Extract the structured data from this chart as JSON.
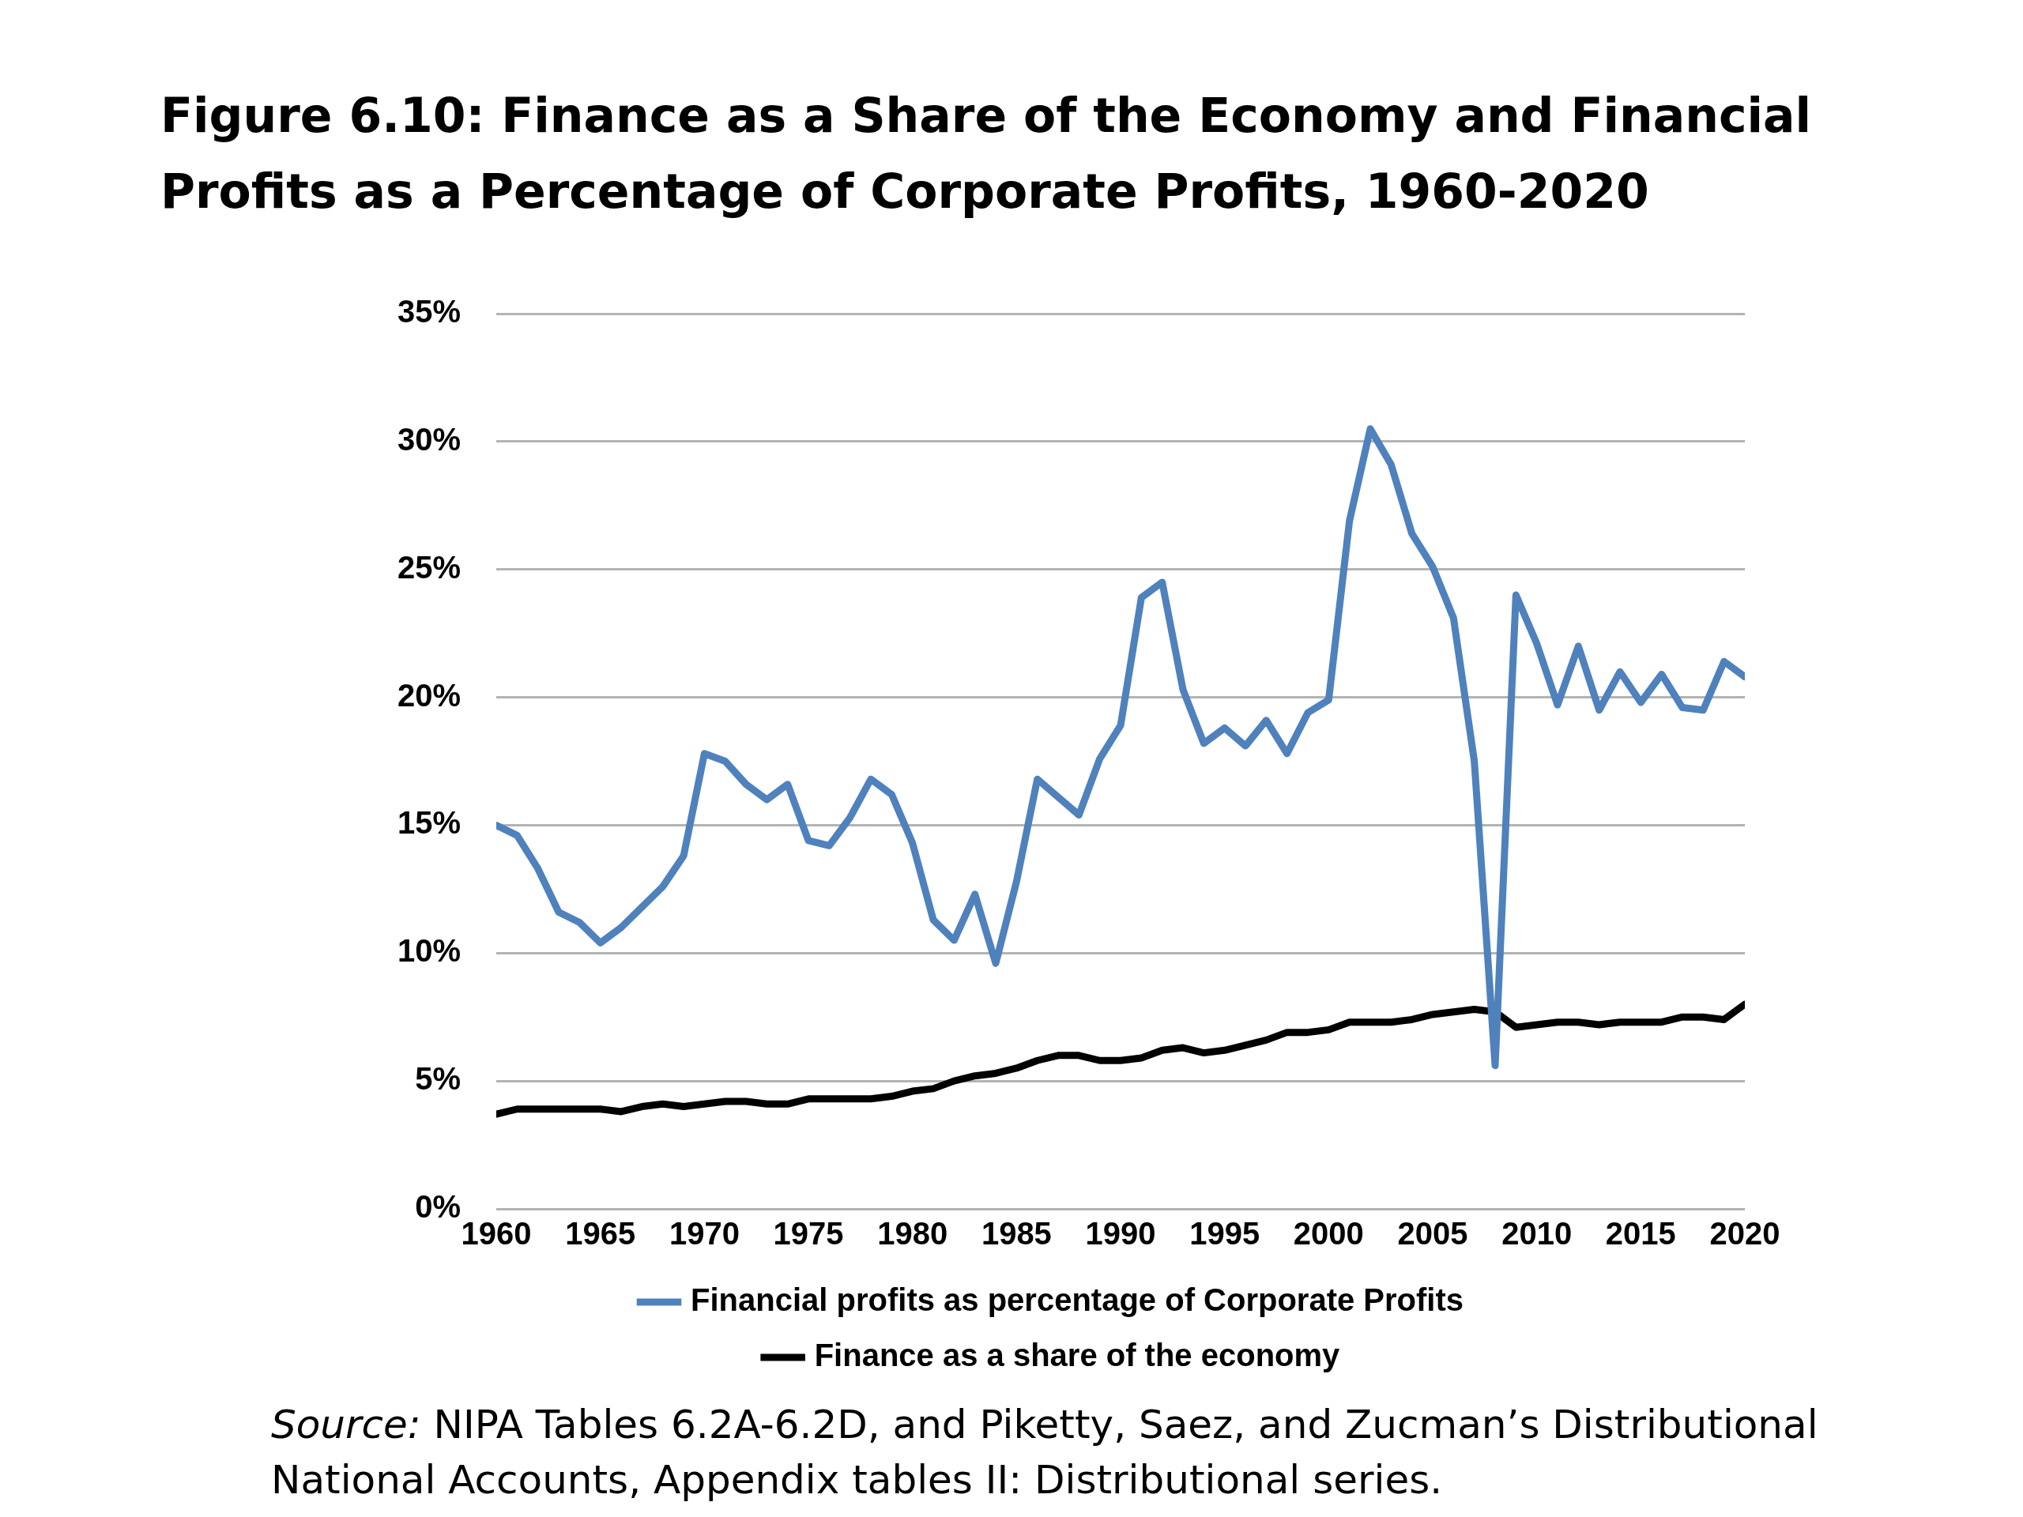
{
  "chart_data": {
    "type": "line",
    "title": "Figure 6.10: Finance as a Share of the Economy and Financial Profits as a Percentage of Corporate Profits, 1960-2020",
    "x": [
      1960,
      1961,
      1962,
      1963,
      1964,
      1965,
      1966,
      1967,
      1968,
      1969,
      1970,
      1971,
      1972,
      1973,
      1974,
      1975,
      1976,
      1977,
      1978,
      1979,
      1980,
      1981,
      1982,
      1983,
      1984,
      1985,
      1986,
      1987,
      1988,
      1989,
      1990,
      1991,
      1992,
      1993,
      1994,
      1995,
      1996,
      1997,
      1998,
      1999,
      2000,
      2001,
      2002,
      2003,
      2004,
      2005,
      2006,
      2007,
      2008,
      2009,
      2010,
      2011,
      2012,
      2013,
      2014,
      2015,
      2016,
      2017,
      2018,
      2019,
      2020
    ],
    "series": [
      {
        "name": "Financial profits as percentage of Corporate Profits",
        "color": "#4f81bd",
        "values": [
          15.0,
          14.6,
          13.3,
          11.6,
          11.2,
          10.4,
          11.0,
          11.8,
          12.6,
          13.8,
          17.8,
          17.5,
          16.6,
          16.0,
          16.6,
          14.4,
          14.2,
          15.3,
          16.8,
          16.2,
          14.3,
          11.3,
          10.5,
          12.3,
          9.6,
          12.8,
          16.8,
          16.1,
          15.4,
          17.6,
          18.9,
          23.9,
          24.5,
          20.3,
          18.2,
          18.8,
          18.1,
          19.1,
          17.8,
          19.4,
          19.9,
          26.9,
          30.5,
          29.1,
          26.4,
          25.1,
          23.1,
          17.5,
          5.6,
          24.0,
          22.1,
          19.7,
          22.0,
          19.5,
          21.0,
          19.8,
          20.9,
          19.6,
          19.5,
          21.4,
          20.8
        ]
      },
      {
        "name": "Finance as a share of the economy",
        "color": "#000000",
        "values": [
          3.7,
          3.9,
          3.9,
          3.9,
          3.9,
          3.9,
          3.8,
          4.0,
          4.1,
          4.0,
          4.1,
          4.2,
          4.2,
          4.1,
          4.1,
          4.3,
          4.3,
          4.3,
          4.3,
          4.4,
          4.6,
          4.7,
          5.0,
          5.2,
          5.3,
          5.5,
          5.8,
          6.0,
          6.0,
          5.8,
          5.8,
          5.9,
          6.2,
          6.3,
          6.1,
          6.2,
          6.4,
          6.6,
          6.9,
          6.9,
          7.0,
          7.3,
          7.3,
          7.3,
          7.4,
          7.6,
          7.7,
          7.8,
          7.7,
          7.1,
          7.2,
          7.3,
          7.3,
          7.2,
          7.3,
          7.3,
          7.3,
          7.5,
          7.5,
          7.4,
          8.0
        ]
      }
    ],
    "xlim": [
      1960,
      2020
    ],
    "xticks": [
      1960,
      1965,
      1970,
      1975,
      1980,
      1985,
      1990,
      1995,
      2000,
      2005,
      2010,
      2015,
      2020
    ],
    "ylim": [
      0,
      35
    ],
    "yticks": [
      {
        "value": 0,
        "label": "0%"
      },
      {
        "value": 5,
        "label": "5%"
      },
      {
        "value": 10,
        "label": "10%"
      },
      {
        "value": 15,
        "label": "15%"
      },
      {
        "value": 20,
        "label": "20%"
      },
      {
        "value": 25,
        "label": "25%"
      },
      {
        "value": 30,
        "label": "30%"
      },
      {
        "value": 35,
        "label": "35%"
      }
    ],
    "grid": "y",
    "legend": "bottom",
    "marker": "none",
    "line_style": "solid",
    "annotations": [
      "Source: NIPA Tables 6.2A-6.2D, and Piketty, Saez, and Zucman’s Distributional National Accounts, Appendix tables II: Distributional series."
    ]
  }
}
